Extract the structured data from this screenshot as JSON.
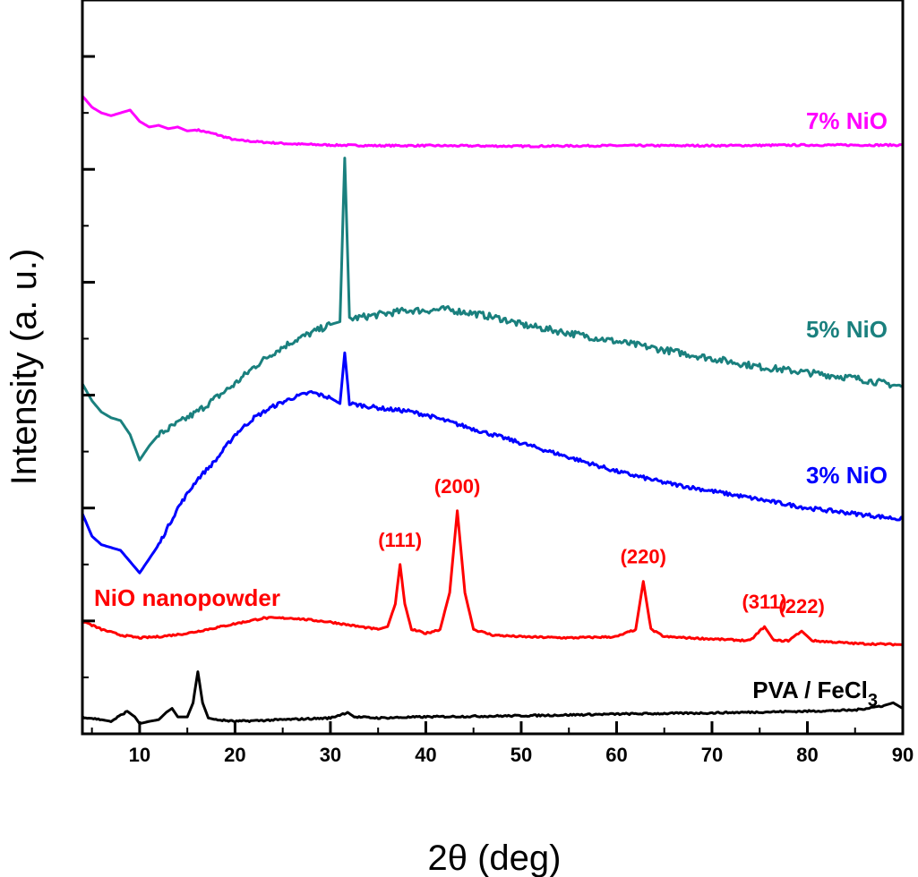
{
  "chart_data": {
    "type": "line",
    "xlabel": "2θ (deg)",
    "ylabel": "Intensity (a. u.)",
    "xlim": [
      4,
      90
    ],
    "ylim": [
      0,
      13
    ],
    "xticks": [
      10,
      20,
      30,
      40,
      50,
      60,
      70,
      80,
      90
    ],
    "y_tick_labels_shown": false,
    "grid": false,
    "legend": "none (series labeled directly on plot)",
    "series": [
      {
        "name": "7% NiO",
        "color": "#ff00ff",
        "points": [
          [
            4,
            11.3
          ],
          [
            5,
            11.1
          ],
          [
            6,
            11.0
          ],
          [
            7,
            10.95
          ],
          [
            8,
            11.0
          ],
          [
            9,
            11.05
          ],
          [
            10,
            10.85
          ],
          [
            11,
            10.75
          ],
          [
            12,
            10.78
          ],
          [
            13,
            10.72
          ],
          [
            14,
            10.75
          ],
          [
            15,
            10.68
          ],
          [
            16,
            10.7
          ],
          [
            18,
            10.62
          ],
          [
            20,
            10.52
          ],
          [
            23,
            10.48
          ],
          [
            26,
            10.45
          ],
          [
            30,
            10.43
          ],
          [
            35,
            10.42
          ],
          [
            40,
            10.42
          ],
          [
            50,
            10.41
          ],
          [
            60,
            10.42
          ],
          [
            70,
            10.42
          ],
          [
            80,
            10.43
          ],
          [
            90,
            10.43
          ]
        ]
      },
      {
        "name": "5% NiO",
        "color": "#1a807e",
        "points": [
          [
            4,
            6.2
          ],
          [
            5,
            5.9
          ],
          [
            6,
            5.7
          ],
          [
            7,
            5.6
          ],
          [
            8,
            5.55
          ],
          [
            9,
            5.3
          ],
          [
            10,
            4.85
          ],
          [
            11,
            5.1
          ],
          [
            12,
            5.3
          ],
          [
            14,
            5.5
          ],
          [
            16,
            5.7
          ],
          [
            18,
            5.95
          ],
          [
            20,
            6.2
          ],
          [
            22,
            6.5
          ],
          [
            24,
            6.75
          ],
          [
            26,
            6.95
          ],
          [
            28,
            7.1
          ],
          [
            30,
            7.25
          ],
          [
            31,
            7.3
          ],
          [
            31.5,
            10.2
          ],
          [
            32,
            7.35
          ],
          [
            34,
            7.4
          ],
          [
            36,
            7.45
          ],
          [
            38,
            7.5
          ],
          [
            40,
            7.5
          ],
          [
            42,
            7.52
          ],
          [
            45,
            7.45
          ],
          [
            48,
            7.35
          ],
          [
            50,
            7.25
          ],
          [
            55,
            7.1
          ],
          [
            60,
            6.95
          ],
          [
            65,
            6.8
          ],
          [
            70,
            6.65
          ],
          [
            75,
            6.5
          ],
          [
            80,
            6.4
          ],
          [
            85,
            6.3
          ],
          [
            90,
            6.15
          ]
        ]
      },
      {
        "name": "3% NiO",
        "color": "#0000ff",
        "points": [
          [
            4,
            3.9
          ],
          [
            5,
            3.5
          ],
          [
            6,
            3.35
          ],
          [
            7,
            3.3
          ],
          [
            8,
            3.25
          ],
          [
            9,
            3.05
          ],
          [
            10,
            2.85
          ],
          [
            11,
            3.1
          ],
          [
            12,
            3.35
          ],
          [
            14,
            4.0
          ],
          [
            16,
            4.5
          ],
          [
            18,
            4.85
          ],
          [
            20,
            5.3
          ],
          [
            22,
            5.6
          ],
          [
            24,
            5.8
          ],
          [
            26,
            5.95
          ],
          [
            28,
            6.05
          ],
          [
            30,
            5.95
          ],
          [
            31,
            5.85
          ],
          [
            31.5,
            6.75
          ],
          [
            32,
            5.85
          ],
          [
            34,
            5.8
          ],
          [
            36,
            5.75
          ],
          [
            38,
            5.72
          ],
          [
            40,
            5.65
          ],
          [
            45,
            5.4
          ],
          [
            50,
            5.15
          ],
          [
            55,
            4.9
          ],
          [
            60,
            4.65
          ],
          [
            65,
            4.45
          ],
          [
            70,
            4.3
          ],
          [
            75,
            4.15
          ],
          [
            80,
            4.0
          ],
          [
            85,
            3.9
          ],
          [
            90,
            3.8
          ]
        ]
      },
      {
        "name": "NiO nanopowder",
        "color": "#ff0000",
        "points": [
          [
            4,
            2.0
          ],
          [
            6,
            1.85
          ],
          [
            8,
            1.75
          ],
          [
            10,
            1.7
          ],
          [
            12,
            1.72
          ],
          [
            15,
            1.78
          ],
          [
            18,
            1.88
          ],
          [
            20,
            1.95
          ],
          [
            23,
            2.05
          ],
          [
            26,
            2.05
          ],
          [
            30,
            1.98
          ],
          [
            33,
            1.9
          ],
          [
            35,
            1.85
          ],
          [
            36,
            1.9
          ],
          [
            36.8,
            2.3
          ],
          [
            37.3,
            3.0
          ],
          [
            37.8,
            2.3
          ],
          [
            38.5,
            1.85
          ],
          [
            40,
            1.78
          ],
          [
            41.5,
            1.85
          ],
          [
            42.5,
            2.5
          ],
          [
            43.3,
            3.95
          ],
          [
            44.1,
            2.5
          ],
          [
            45,
            1.85
          ],
          [
            47,
            1.75
          ],
          [
            50,
            1.72
          ],
          [
            55,
            1.7
          ],
          [
            60,
            1.72
          ],
          [
            62,
            1.85
          ],
          [
            62.8,
            2.7
          ],
          [
            63.6,
            1.85
          ],
          [
            65,
            1.72
          ],
          [
            70,
            1.68
          ],
          [
            74,
            1.65
          ],
          [
            75.5,
            1.9
          ],
          [
            76.5,
            1.65
          ],
          [
            78,
            1.65
          ],
          [
            79.4,
            1.82
          ],
          [
            80.5,
            1.65
          ],
          [
            85,
            1.6
          ],
          [
            90,
            1.58
          ]
        ]
      },
      {
        "name": "PVA / FeCl3",
        "color": "#000000",
        "points": [
          [
            4,
            0.3
          ],
          [
            6,
            0.25
          ],
          [
            7,
            0.22
          ],
          [
            8.7,
            0.4
          ],
          [
            9.5,
            0.3
          ],
          [
            10,
            0.18
          ],
          [
            11,
            0.22
          ],
          [
            12,
            0.25
          ],
          [
            12.8,
            0.38
          ],
          [
            13.4,
            0.45
          ],
          [
            14,
            0.3
          ],
          [
            15,
            0.3
          ],
          [
            15.6,
            0.55
          ],
          [
            16.1,
            1.1
          ],
          [
            16.6,
            0.55
          ],
          [
            17.2,
            0.28
          ],
          [
            18,
            0.25
          ],
          [
            20,
            0.22
          ],
          [
            25,
            0.25
          ],
          [
            30,
            0.28
          ],
          [
            31.8,
            0.38
          ],
          [
            32.5,
            0.3
          ],
          [
            35,
            0.28
          ],
          [
            40,
            0.3
          ],
          [
            50,
            0.32
          ],
          [
            60,
            0.35
          ],
          [
            70,
            0.37
          ],
          [
            80,
            0.4
          ],
          [
            85,
            0.42
          ],
          [
            88,
            0.5
          ],
          [
            89,
            0.55
          ],
          [
            90,
            0.45
          ]
        ]
      }
    ],
    "series_labels": [
      "7% NiO",
      "5% NiO",
      "3% NiO",
      "NiO nanopowder"
    ],
    "series_label_pva": "PVA / FeCl",
    "series_label_pva_sub": "3",
    "peak_labels": [
      {
        "text": "(111)",
        "x": 37.3
      },
      {
        "text": "(200)",
        "x": 43.3
      },
      {
        "text": "(220)",
        "x": 62.8
      },
      {
        "text": "(311)",
        "x": 75.5
      },
      {
        "text": "(222)",
        "x": 79.4
      }
    ]
  }
}
